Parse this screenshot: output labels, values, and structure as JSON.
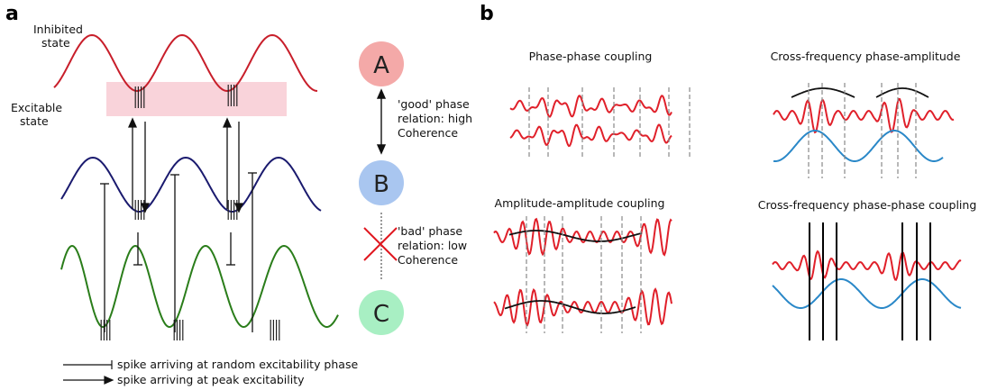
{
  "panel_a": {
    "letter": "a",
    "inhibited_label": [
      "Inhibited",
      "state"
    ],
    "excitable_label": [
      "Excitable",
      "state"
    ],
    "legend_random": "spike arriving at random excitability phase",
    "legend_peak": "spike arriving at peak excitability",
    "nodes": [
      {
        "label": "A",
        "color": "#f4a9a8"
      },
      {
        "label": "B",
        "color": "#a9c6f0"
      },
      {
        "label": "C",
        "color": "#a8efc3"
      }
    ],
    "good_text": [
      "'good' phase",
      "relation: high",
      "Coherence"
    ],
    "bad_text": [
      "'bad' phase",
      "relation: low",
      "Coherence"
    ],
    "colors": {
      "red": "#c81e2a",
      "navy": "#1a1a6e",
      "green": "#2a7d1a",
      "band": "#f9d3da",
      "cross": "#e0161e"
    }
  },
  "panel_b": {
    "letter": "b",
    "titles": {
      "pp": "Phase-phase coupling",
      "aa": "Amplitude-amplitude coupling",
      "cfpa": "Cross-frequency phase-amplitude",
      "cfpp": "Cross-frequency phase-phase coupling"
    },
    "colors": {
      "signal": "#e0202a",
      "slow": "#2a88c8",
      "envelope": "#111111",
      "dash": "#888888"
    }
  }
}
